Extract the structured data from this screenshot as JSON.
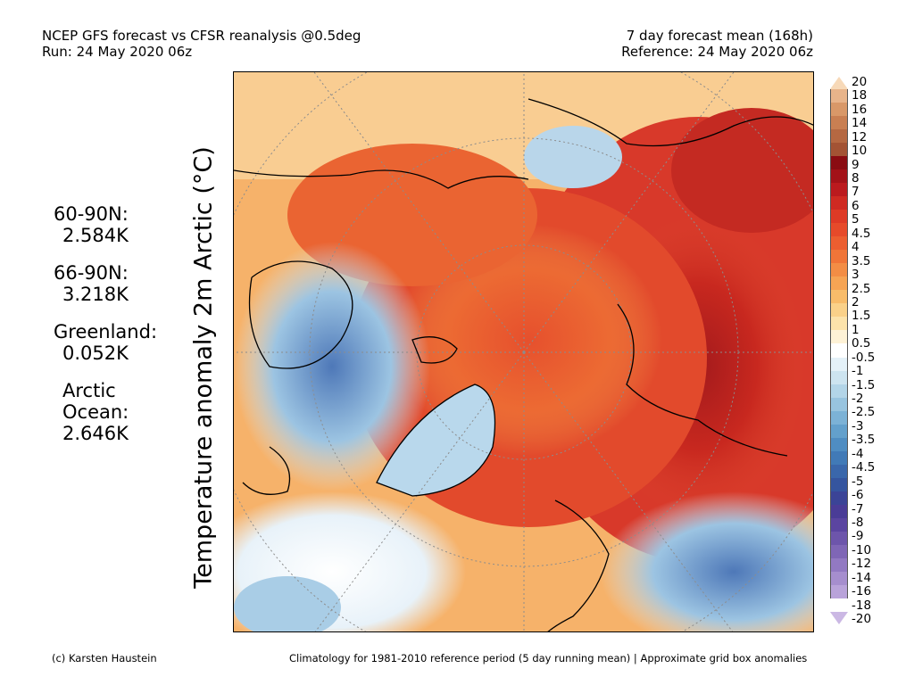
{
  "header": {
    "left_line1": "NCEP GFS forecast vs CFSR reanalysis @0.5deg",
    "left_line2": "Run: 24 May 2020 06z",
    "right_line1": "7 day forecast mean (168h)",
    "right_line2": "Reference: 24 May 2020 06z"
  },
  "axis_label": "Temperature anomaly 2m Arctic (°C)",
  "stats": [
    {
      "name_line1": "60-90N:",
      "name_line2": "",
      "value": "2.584K"
    },
    {
      "name_line1": "66-90N:",
      "name_line2": "",
      "value": "3.218K"
    },
    {
      "name_line1": "Greenland:",
      "name_line2": "",
      "value": "0.052K"
    },
    {
      "name_line1": "Arctic",
      "name_line2": "Ocean:",
      "value": "2.646K"
    }
  ],
  "colorbar": {
    "labels": [
      "20",
      "18",
      "16",
      "14",
      "12",
      "10",
      "9",
      "8",
      "7",
      "6",
      "5",
      "4.5",
      "4",
      "3.5",
      "3",
      "2.5",
      "2",
      "1.5",
      "1",
      "0.5",
      "-0.5",
      "-1",
      "-1.5",
      "-2",
      "-2.5",
      "-3",
      "-3.5",
      "-4",
      "-4.5",
      "-5",
      "-6",
      "-7",
      "-8",
      "-9",
      "-10",
      "-12",
      "-14",
      "-16",
      "-18",
      "-20"
    ],
    "colors": [
      "#f7d9b8",
      "#e8b48a",
      "#d99868",
      "#c97f52",
      "#b56842",
      "#a35334",
      "#8a0c12",
      "#a31218",
      "#bb1a1e",
      "#cf2a22",
      "#de3a26",
      "#e64a2a",
      "#ec5e30",
      "#f07538",
      "#f38d45",
      "#f6a454",
      "#f8bc6a",
      "#fad189",
      "#fce3ab",
      "#fef2d6",
      "#ffffff",
      "#e4f1f8",
      "#cde4f0",
      "#b3d5e8",
      "#98c4df",
      "#7cb2d6",
      "#63a0cc",
      "#4f8dc2",
      "#417ab7",
      "#3a67ab",
      "#35559f",
      "#3b4497",
      "#4a3c97",
      "#5b45a1",
      "#6d55ab",
      "#7f66b6",
      "#9279c2",
      "#a68ece",
      "#b9a3da",
      "#cbb8e4"
    ],
    "top_cap": "#f7d9b8",
    "bottom_cap": "#cbb8e4"
  },
  "footer": {
    "left": "(c) Karsten Haustein",
    "right": "Climatology for 1981-2010 reference period (5 day running mean) | Approximate grid box anomalies"
  }
}
